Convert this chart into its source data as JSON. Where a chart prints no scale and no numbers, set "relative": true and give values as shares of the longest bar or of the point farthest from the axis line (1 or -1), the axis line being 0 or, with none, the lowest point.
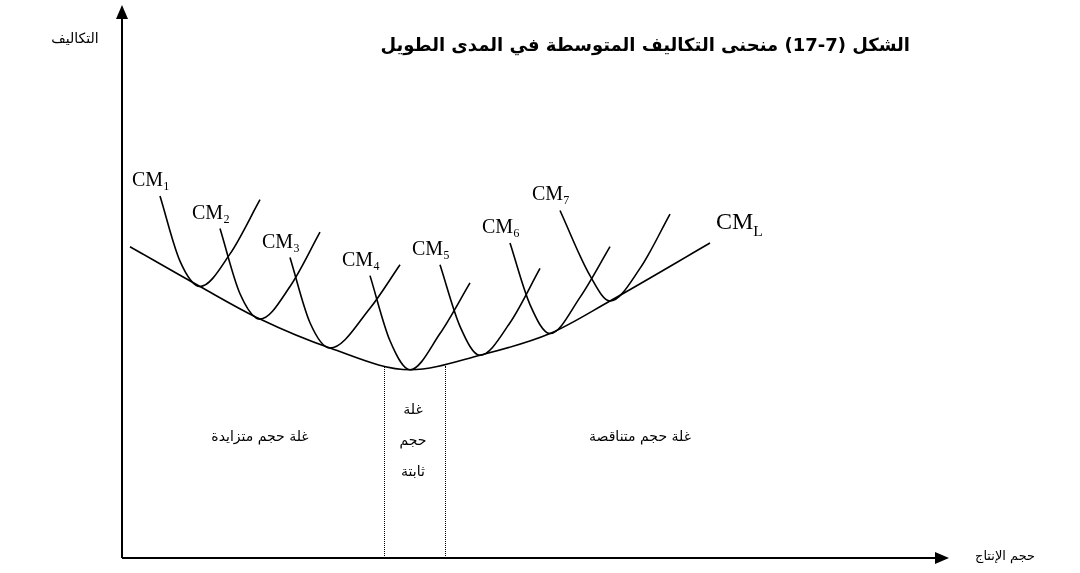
{
  "chart_data": {
    "type": "line",
    "relative": true,
    "marker": "none",
    "title": "الشكل (7-17) منحنى التكاليف المتوسطة في المدى الطويل",
    "xlabel": "حجم الإنتاج",
    "categories": [
      null,
      null,
      null,
      null,
      null,
      null,
      null,
      null,
      null,
      null,
      null,
      null,
      null,
      null,
      null,
      null,
      null,
      null,
      null,
      null,
      null,
      null,
      null,
      null,
      null,
      null,
      null,
      null,
      null,
      null,
      null,
      null,
      null,
      null,
      null,
      null,
      null,
      null,
      null,
      null,
      null,
      null,
      null,
      null,
      null,
      null,
      null,
      null,
      null,
      null,
      null,
      null,
      null,
      null,
      null,
      null,
      null,
      null,
      null,
      null,
      null,
      null,
      null,
      null,
      null,
      null,
      null,
      null,
      null,
      null,
      null,
      null,
      null,
      null,
      null,
      null,
      null,
      null,
      null,
      null,
      null,
      null,
      null,
      null
    ],
    "series": [
      {
        "name": "CM₁",
        "color": "#000000",
        "values": [
          null,
          null,
          null,
          null,
          1,
          null,
          0.82,
          null,
          0.75,
          null,
          null,
          0.84,
          null,
          null,
          0.99,
          null,
          null,
          null,
          null,
          null,
          null,
          null,
          null,
          null,
          null,
          null,
          null,
          null,
          null,
          null,
          null,
          null,
          null,
          null,
          null,
          null,
          null,
          null,
          null,
          null,
          null,
          null,
          null,
          null,
          null,
          null,
          null,
          null,
          null,
          null,
          null,
          null,
          null,
          null,
          null,
          null,
          null,
          null,
          null,
          null,
          null,
          null,
          null,
          null,
          null,
          null,
          null,
          null,
          null,
          null,
          null,
          null,
          null,
          null,
          null,
          null,
          null,
          null,
          null,
          null,
          null,
          null,
          null,
          null
        ]
      },
      {
        "name": "CM₂",
        "color": "#000000",
        "values": [
          null,
          null,
          null,
          null,
          null,
          null,
          null,
          null,
          null,
          null,
          0.91,
          null,
          0.73,
          null,
          0.66,
          null,
          null,
          0.75,
          null,
          null,
          0.9,
          null,
          null,
          null,
          null,
          null,
          null,
          null,
          null,
          null,
          null,
          null,
          null,
          null,
          null,
          null,
          null,
          null,
          null,
          null,
          null,
          null,
          null,
          null,
          null,
          null,
          null,
          null,
          null,
          null,
          null,
          null,
          null,
          null,
          null,
          null,
          null,
          null,
          null,
          null,
          null,
          null,
          null,
          null,
          null,
          null,
          null,
          null,
          null,
          null,
          null,
          null,
          null,
          null,
          null,
          null,
          null,
          null,
          null,
          null,
          null,
          null,
          null,
          null
        ]
      },
      {
        "name": "CM₃",
        "color": "#000000",
        "values": [
          null,
          null,
          null,
          null,
          null,
          null,
          null,
          null,
          null,
          null,
          null,
          null,
          null,
          null,
          null,
          null,
          null,
          0.83,
          null,
          0.65,
          null,
          0.58,
          null,
          null,
          null,
          0.69,
          null,
          null,
          0.81,
          null,
          null,
          null,
          null,
          null,
          null,
          null,
          null,
          null,
          null,
          null,
          null,
          null,
          null,
          null,
          null,
          null,
          null,
          null,
          null,
          null,
          null,
          null,
          null,
          null,
          null,
          null,
          null,
          null,
          null,
          null,
          null,
          null,
          null,
          null,
          null,
          null,
          null,
          null,
          null,
          null,
          null,
          null,
          null,
          null,
          null,
          null,
          null,
          null,
          null,
          null,
          null,
          null,
          null,
          null
        ]
      },
      {
        "name": "CM₄",
        "color": "#000000",
        "values": [
          null,
          null,
          null,
          null,
          null,
          null,
          null,
          null,
          null,
          null,
          null,
          null,
          null,
          null,
          null,
          null,
          null,
          null,
          null,
          null,
          null,
          null,
          null,
          null,
          null,
          0.78,
          null,
          0.6,
          null,
          0.52,
          null,
          null,
          0.62,
          null,
          null,
          0.76,
          null,
          null,
          null,
          null,
          null,
          null,
          null,
          null,
          null,
          null,
          null,
          null,
          null,
          null,
          null,
          null,
          null,
          null,
          null,
          null,
          null,
          null,
          null,
          null,
          null,
          null,
          null,
          null,
          null,
          null,
          null,
          null,
          null,
          null,
          null,
          null,
          null,
          null,
          null,
          null,
          null,
          null,
          null,
          null,
          null,
          null,
          null,
          null
        ]
      },
      {
        "name": "CM₅",
        "color": "#000000",
        "values": [
          null,
          null,
          null,
          null,
          null,
          null,
          null,
          null,
          null,
          null,
          null,
          null,
          null,
          null,
          null,
          null,
          null,
          null,
          null,
          null,
          null,
          null,
          null,
          null,
          null,
          null,
          null,
          null,
          null,
          null,
          null,
          null,
          0.81,
          null,
          0.64,
          null,
          0.56,
          null,
          null,
          0.65,
          null,
          null,
          0.8,
          null,
          null,
          null,
          null,
          null,
          null,
          null,
          null,
          null,
          null,
          null,
          null,
          null,
          null,
          null,
          null,
          null,
          null,
          null,
          null,
          null,
          null,
          null,
          null,
          null,
          null,
          null,
          null,
          null,
          null,
          null,
          null,
          null,
          null,
          null,
          null,
          null,
          null,
          null,
          null,
          null
        ]
      },
      {
        "name": "CM₆",
        "color": "#000000",
        "values": [
          null,
          null,
          null,
          null,
          null,
          null,
          null,
          null,
          null,
          null,
          null,
          null,
          null,
          null,
          null,
          null,
          null,
          null,
          null,
          null,
          null,
          null,
          null,
          null,
          null,
          null,
          null,
          null,
          null,
          null,
          null,
          null,
          null,
          null,
          null,
          null,
          null,
          null,
          null,
          0.87,
          null,
          0.7,
          null,
          0.62,
          null,
          null,
          0.72,
          null,
          null,
          0.86,
          null,
          null,
          null,
          null,
          null,
          null,
          null,
          null,
          null,
          null,
          null,
          null,
          null,
          null,
          null,
          null,
          null,
          null,
          null,
          null,
          null,
          null,
          null,
          null,
          null,
          null,
          null,
          null,
          null,
          null,
          null,
          null,
          null,
          null
        ]
      },
      {
        "name": "CM₇",
        "color": "#000000",
        "values": [
          null,
          null,
          null,
          null,
          null,
          null,
          null,
          null,
          null,
          null,
          null,
          null,
          null,
          null,
          null,
          null,
          null,
          null,
          null,
          null,
          null,
          null,
          null,
          null,
          null,
          null,
          null,
          null,
          null,
          null,
          null,
          null,
          null,
          null,
          null,
          null,
          null,
          null,
          null,
          null,
          null,
          null,
          null,
          null,
          0.96,
          null,
          null,
          0.78,
          null,
          0.71,
          null,
          null,
          0.8,
          null,
          null,
          0.95,
          null,
          null,
          null,
          null,
          null,
          null,
          null,
          null,
          null,
          null,
          null,
          null,
          null,
          null,
          null,
          null,
          null,
          null,
          null,
          null,
          null,
          null,
          null,
          null,
          null,
          null,
          null,
          null
        ]
      },
      {
        "name": "CM$_{L}$",
        "color": "#000000",
        "values": [
          null,
          0.86,
          null,
          null,
          null,
          null,
          null,
          null,
          0.75,
          null,
          null,
          null,
          null,
          null,
          0.66,
          null,
          null,
          null,
          null,
          null,
          null,
          0.58,
          null,
          null,
          null,
          null,
          null,
          null,
          null,
          0.52,
          null,
          null,
          null,
          null,
          null,
          null,
          0.56,
          null,
          null,
          null,
          null,
          null,
          null,
          0.62,
          null,
          null,
          null,
          null,
          null,
          0.71,
          null,
          null,
          null,
          null,
          null,
          null,
          null,
          null,
          null,
          0.87,
          null,
          null,
          null,
          null,
          null,
          null,
          null,
          null,
          null,
          null,
          null,
          null,
          null,
          null,
          null,
          null,
          null,
          null,
          null,
          null,
          null,
          null,
          null,
          null
        ]
      }
    ],
    "annotations": [
      "غلة حجم متزايدة",
      "غلة حجم ثابتة",
      "غلة حجم متناقصة",
      "التكاليف"
    ]
  }
}
